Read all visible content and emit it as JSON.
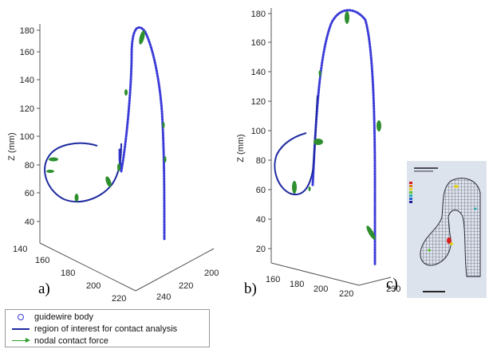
{
  "panels": [
    {
      "label": "a)",
      "z_ticks": [
        "40",
        "60",
        "80",
        "100",
        "120",
        "140",
        "160",
        "180"
      ],
      "z_axis_label": "Z (mm)",
      "x_ticks": [
        "140",
        "160",
        "180",
        "200",
        "220"
      ],
      "y_ticks": [
        "200",
        "220",
        "240"
      ]
    },
    {
      "label": "b)",
      "z_ticks": [
        "20",
        "40",
        "60",
        "80",
        "100",
        "120",
        "140",
        "160",
        "180"
      ],
      "z_axis_label": "Z (mm)",
      "x_ticks": [
        "160",
        "180",
        "200",
        "220"
      ],
      "y_ticks": [
        "230"
      ]
    },
    {
      "label": "c)",
      "image_description": "FEM mesh of vessel phantom with contour legend"
    }
  ],
  "legend": {
    "items": [
      {
        "label": "guidewire body",
        "symbol": "circle-marker",
        "color": "#3a3ad8"
      },
      {
        "label": "region of interest for contact analysis",
        "symbol": "solid-line",
        "color": "#1e2aa0"
      },
      {
        "label": "nodal contact force",
        "symbol": "arrow",
        "color": "#2aa02a"
      }
    ]
  },
  "colors": {
    "guidewire": "#3a3ad8",
    "region_of_interest": "#1e2aa0",
    "contact_force": "#2aa02a",
    "axis": "#444444"
  }
}
